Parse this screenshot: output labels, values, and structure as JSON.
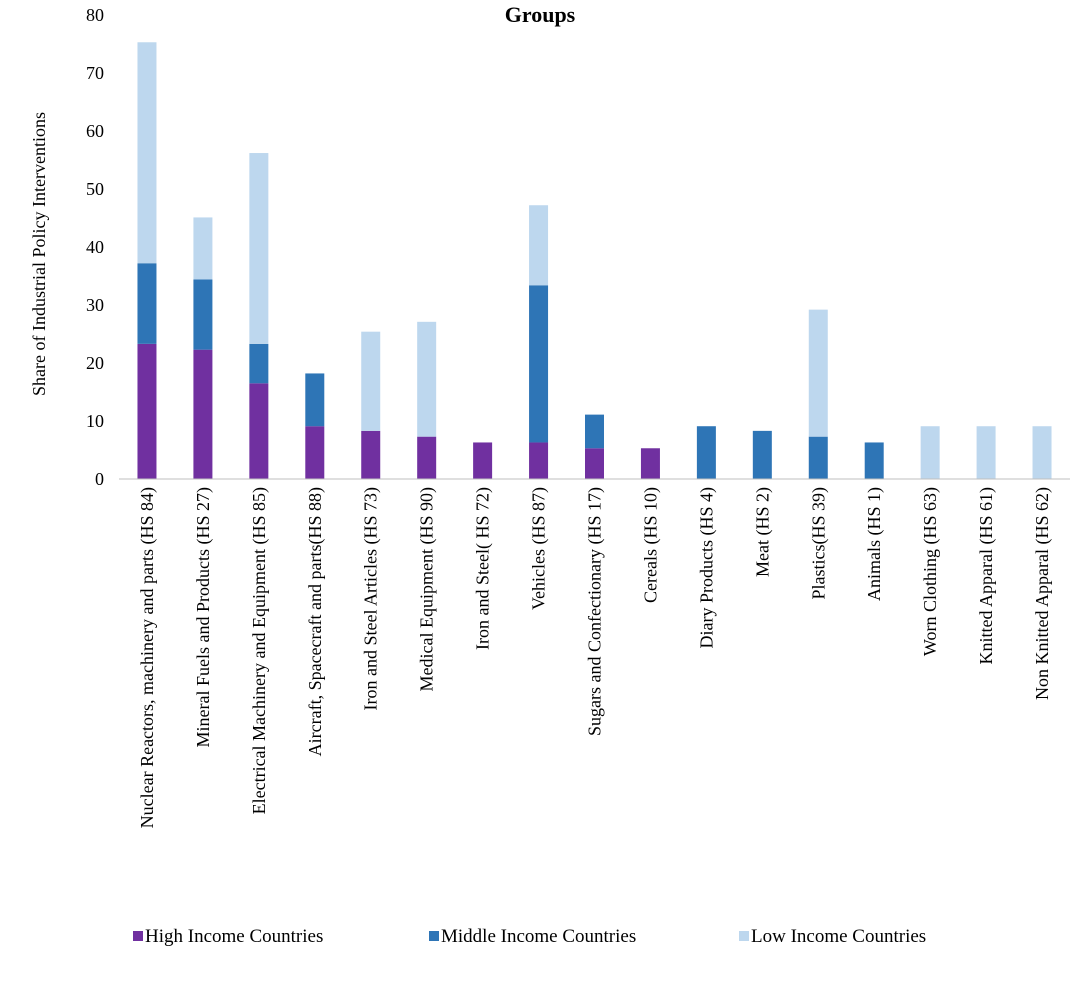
{
  "chart_data": {
    "type": "bar",
    "stacked": true,
    "title": "Groups",
    "ylabel": "Share of Industrial Policy Interventions",
    "xlabel": "",
    "ylim": [
      0,
      80
    ],
    "yticks": [
      "0",
      "10",
      "20",
      "30",
      "40",
      "50",
      "60",
      "70",
      "80"
    ],
    "grid": false,
    "legend_position": "bottom",
    "categories": [
      "Nuclear Reactors, machinery and parts (HS 84)",
      "Mineral Fuels and Products (HS 27)",
      "Electrical Machinery and Equipment (HS 85)",
      "Aircraft, Spacecraft and parts(HS 88)",
      "Iron and Steel Articles (HS 73)",
      "Medical Equipment (HS 90)",
      "Iron and Steel( HS 72)",
      "Vehicles (HS 87)",
      "Sugars and Confectionary (HS 17)",
      "Cereals (HS 10)",
      "Diary Products (HS 4)",
      "Meat (HS 2)",
      "Plastics(HS 39)",
      "Animals (HS 1)",
      "Worn Clothing (HS 63)",
      "Knitted Apparal (HS 61)",
      "Non Knitted Apparal (HS 62)"
    ],
    "series": [
      {
        "name": "High Income Countries",
        "color": "#7030A0",
        "values": [
          23.3,
          22.3,
          16.5,
          9.1,
          8.3,
          7.3,
          6.3,
          6.3,
          5.3,
          5.3,
          0,
          0,
          0,
          0,
          0,
          0,
          0
        ]
      },
      {
        "name": "Middle Income Countries",
        "color": "#2E75B6",
        "values": [
          13.9,
          12.1,
          6.8,
          9.1,
          0,
          0,
          0,
          27.1,
          5.8,
          0,
          9.1,
          8.3,
          7.3,
          6.3,
          0,
          0,
          0
        ]
      },
      {
        "name": "Low Income Countries",
        "color": "#BDD7EE",
        "values": [
          38.1,
          10.7,
          32.9,
          0,
          17.1,
          19.8,
          0,
          13.8,
          0,
          0,
          0,
          0,
          21.9,
          0,
          9.1,
          9.1,
          9.1
        ]
      }
    ]
  }
}
